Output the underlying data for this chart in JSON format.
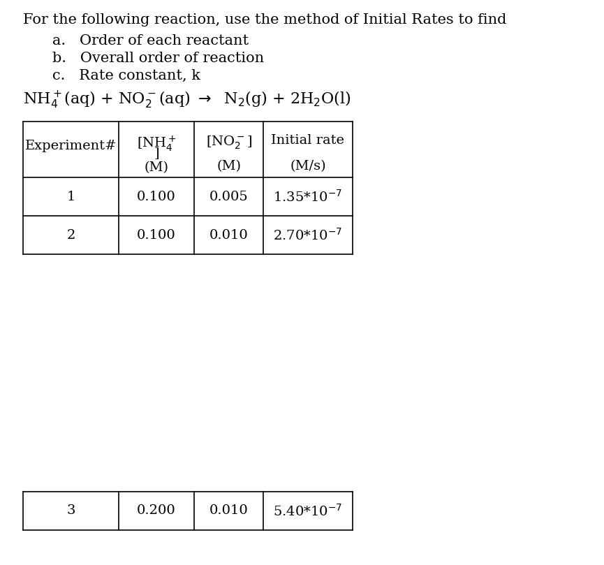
{
  "title_line": "For the following reaction, use the method of Initial Rates to find",
  "items": [
    "a.   Order of each reactant",
    "b.   Overall order of reaction",
    "c.   Rate constant, k"
  ],
  "reaction": "NH₄⁺(aq) + NO₂⁻(aq) → N₂(g) + 2H₂O(l)",
  "col_headers": [
    "Experiment#",
    "[NH₄⁺\n]\n(M)",
    "[NO₂⁻]\n(M)",
    "Initial rate\n\n(M/s)"
  ],
  "rows": [
    [
      "1",
      "0.100",
      "0.005",
      "1.35*10⁻⁷"
    ],
    [
      "2",
      "0.100",
      "0.010",
      "2.70*10⁻⁷"
    ],
    [
      "3",
      "0.200",
      "0.010",
      "5.40*10⁻⁷"
    ]
  ],
  "bg_color": "#ffffff",
  "text_color": "#000000",
  "font_size_title": 15,
  "font_size_body": 14,
  "font_size_table": 14
}
